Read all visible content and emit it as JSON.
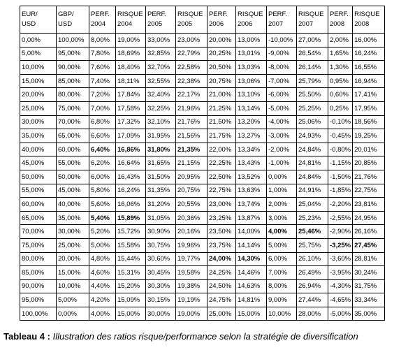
{
  "table": {
    "header": [
      [
        "EUR/",
        "USD"
      ],
      [
        "GBP/",
        "USD"
      ],
      [
        "PERF.",
        "2004"
      ],
      [
        "RISQUE",
        "2004"
      ],
      [
        "PERF.",
        "2005"
      ],
      [
        "RISQUE",
        "2005"
      ],
      [
        "PERF.",
        "2006"
      ],
      [
        "RISQUE",
        "2006"
      ],
      [
        "PERF.",
        "2007"
      ],
      [
        "RISQUE",
        "2007"
      ],
      [
        "PERF.",
        "2008"
      ],
      [
        "RISQUE",
        "2008"
      ]
    ],
    "rows": [
      [
        "0,00%",
        "100,00%",
        "8,00%",
        "19,00%",
        "33,00%",
        "23,00%",
        "20,00%",
        "13,00%",
        "-10,00%",
        "27,00%",
        "2,00%",
        "16,00%"
      ],
      [
        "5,00%",
        "95,00%",
        "7,80%",
        "18,69%",
        "32,85%",
        "22,79%",
        "20,25%",
        "13,01%",
        "-9,00%",
        "26,54%",
        "1,65%",
        "16,24%"
      ],
      [
        "10,00%",
        "90,00%",
        "7,60%",
        "18,40%",
        "32,70%",
        "22,58%",
        "20,50%",
        "13,03%",
        "-8,00%",
        "26,14%",
        "1,30%",
        "16,55%"
      ],
      [
        "15,00%",
        "85,00%",
        "7,40%",
        "18,11%",
        "32,55%",
        "22,38%",
        "20,75%",
        "13,06%",
        "-7,00%",
        "25,79%",
        "0,95%",
        "16,94%"
      ],
      [
        "20,00%",
        "80,00%",
        "7,20%",
        "17,84%",
        "32,40%",
        "22,17%",
        "21,00%",
        "13,10%",
        "-6,00%",
        "25,50%",
        "0,60%",
        "17,41%"
      ],
      [
        "25,00%",
        "75,00%",
        "7,00%",
        "17,58%",
        "32,25%",
        "21,96%",
        "21,25%",
        "13,14%",
        "-5,00%",
        "25,25%",
        "0,25%",
        "17,95%"
      ],
      [
        "30,00%",
        "70,00%",
        "6,80%",
        "17,32%",
        "32,10%",
        "21,76%",
        "21,50%",
        "13,20%",
        "-4,00%",
        "25,06%",
        "-0,10%",
        "18,56%"
      ],
      [
        "35,00%",
        "65,00%",
        "6,60%",
        "17,09%",
        "31,95%",
        "21,56%",
        "21,75%",
        "13,27%",
        "-3,00%",
        "24,93%",
        "-0,45%",
        "19,25%"
      ],
      [
        "40,00%",
        "60,00%",
        "6,40%",
        "16,86%",
        "31,80%",
        "21,35%",
        "22,00%",
        "13,34%",
        "-2,00%",
        "24,84%",
        "-0,80%",
        "20,01%"
      ],
      [
        "45,00%",
        "55,00%",
        "6,20%",
        "16,64%",
        "31,65%",
        "21,15%",
        "22,25%",
        "13,43%",
        "-1,00%",
        "24,81%",
        "-1,15%",
        "20,85%"
      ],
      [
        "50,00%",
        "50,00%",
        "6,00%",
        "16,43%",
        "31,50%",
        "20,95%",
        "22,50%",
        "13,52%",
        "0,00%",
        "24,84%",
        "-1,50%",
        "21,76%"
      ],
      [
        "55,00%",
        "45,00%",
        "5,80%",
        "16,24%",
        "31,35%",
        "20,75%",
        "22,75%",
        "13,63%",
        "1,00%",
        "24,91%",
        "-1,85%",
        "22,75%"
      ],
      [
        "60,00%",
        "40,00%",
        "5,60%",
        "16,06%",
        "31,20%",
        "20,55%",
        "23,00%",
        "13,74%",
        "2,00%",
        "25,04%",
        "-2,20%",
        "23,81%"
      ],
      [
        "65,00%",
        "35,00%",
        "5,40%",
        "15,89%",
        "31,05%",
        "20,36%",
        "23,25%",
        "13,87%",
        "3,00%",
        "25,23%",
        "-2,55%",
        "24,95%"
      ],
      [
        "70,00%",
        "30,00%",
        "5,20%",
        "15,72%",
        "30,90%",
        "20,16%",
        "23,50%",
        "14,00%",
        "4,00%",
        "25,46%",
        "-2,90%",
        "26,16%"
      ],
      [
        "75,00%",
        "25,00%",
        "5,00%",
        "15,58%",
        "30,75%",
        "19,96%",
        "23,75%",
        "14,14%",
        "5,00%",
        "25,75%",
        "-3,25%",
        "27,45%"
      ],
      [
        "80,00%",
        "20,00%",
        "4,80%",
        "15,44%",
        "30,60%",
        "19,77%",
        "24,00%",
        "14,30%",
        "6,00%",
        "26,10%",
        "-3,60%",
        "28,81%"
      ],
      [
        "85,00%",
        "15,00%",
        "4,60%",
        "15,31%",
        "30,45%",
        "19,58%",
        "24,25%",
        "14,46%",
        "7,00%",
        "26,49%",
        "-3,95%",
        "30,24%"
      ],
      [
        "90,00%",
        "10,00%",
        "4,40%",
        "15,20%",
        "30,30%",
        "19,38%",
        "24,50%",
        "14,63%",
        "8,00%",
        "26,94%",
        "-4,30%",
        "31,75%"
      ],
      [
        "95,00%",
        "5,00%",
        "4,20%",
        "15,09%",
        "30,15%",
        "19,19%",
        "24,75%",
        "14,81%",
        "9,00%",
        "27,44%",
        "-4,65%",
        "33,34%"
      ],
      [
        "100,00%",
        "0,00%",
        "4,00%",
        "15,00%",
        "30,00%",
        "19,00%",
        "25,00%",
        "15,00%",
        "10,00%",
        "28,00%",
        "-5,00%",
        "35,00%"
      ]
    ],
    "bold_cells": [
      [
        8,
        2
      ],
      [
        8,
        3
      ],
      [
        8,
        4
      ],
      [
        8,
        5
      ],
      [
        13,
        2
      ],
      [
        13,
        3
      ],
      [
        14,
        8
      ],
      [
        14,
        9
      ],
      [
        15,
        10
      ],
      [
        15,
        11
      ],
      [
        16,
        6
      ],
      [
        16,
        7
      ]
    ]
  },
  "caption": {
    "label": "Tableau 4 :",
    "text": "Illustration des ratios risque/performance selon la stratégie de diversification"
  }
}
